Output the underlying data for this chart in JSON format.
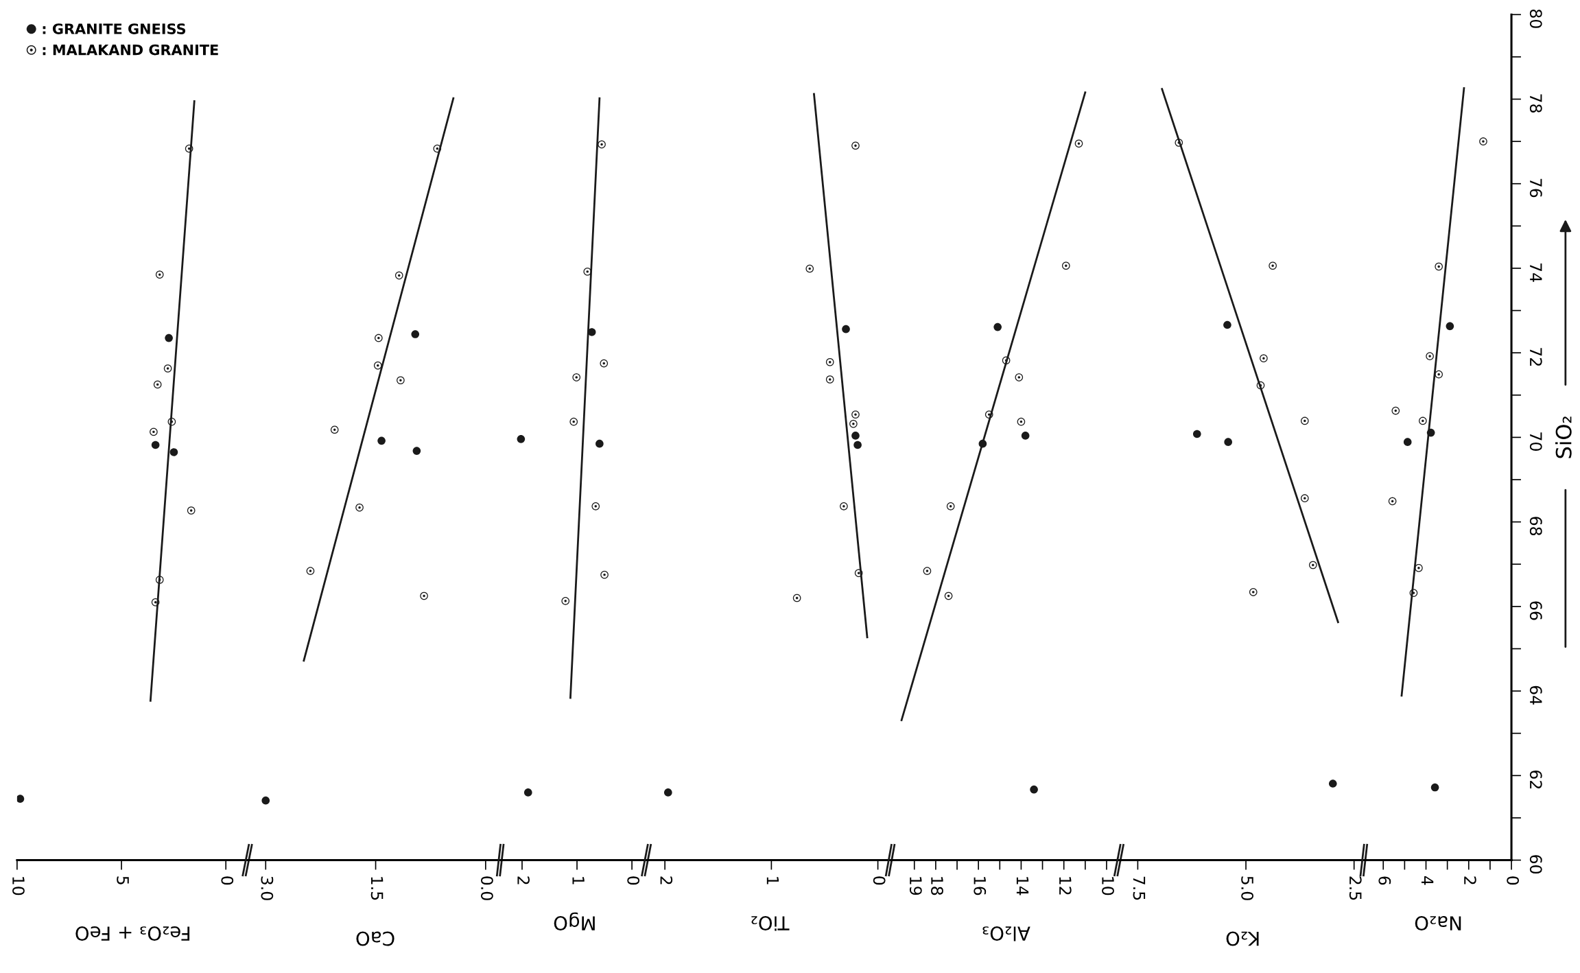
{
  "chart_data": [
    {
      "type": "scatter",
      "xlabel": "Fe₂O₃ + FeO",
      "xlim": [
        10,
        -1.1
      ],
      "xticks": [
        10,
        5,
        0
      ],
      "ylim": [
        60,
        80
      ],
      "tick_labels": "x",
      "legend": "top left",
      "series": [
        {
          "name": ": GRANITE GNEISS",
          "marker": "circle",
          "color": "#1a1a1a",
          "x": [
            9.85,
            2.73,
            3.37,
            2.49
          ],
          "values": [
            61.45,
            72.35,
            69.82,
            69.65
          ]
        },
        {
          "name": ": MALAKAND GRANITE",
          "marker": "dot-circle",
          "color": "#1a1a1a",
          "x": [
            1.76,
            3.17,
            2.78,
            3.27,
            2.59,
            3.46,
            1.66,
            3.17,
            3.37
          ],
          "values": [
            76.83,
            73.85,
            71.63,
            71.25,
            70.37,
            70.13,
            68.27,
            66.63,
            66.1
          ]
        },
        {
          "type": "line",
          "color": "#1a1a1a",
          "x": [
            3.61,
            1.51
          ],
          "values": [
            63.77,
            77.95
          ]
        }
      ]
    },
    {
      "type": "scatter",
      "xlabel": "CaO",
      "xlim": [
        3.23,
        -0.22
      ],
      "xticks": [
        {
          "value": 3,
          "label": "3.0"
        },
        {
          "value": 1.5,
          "label": "1.5"
        },
        {
          "value": 0,
          "label": "0.0"
        }
      ],
      "ylim": [
        60,
        80
      ],
      "tick_labels": "x",
      "series": [
        {
          "type": "scatter",
          "marker": "circle",
          "color": "#1a1a1a",
          "x": [
            3.0,
            0.96,
            1.42,
            0.94
          ],
          "values": [
            61.41,
            72.44,
            69.92,
            69.68
          ]
        },
        {
          "type": "scatter",
          "marker": "dot-circle",
          "color": "#1a1a1a",
          "x": [
            0.66,
            1.18,
            1.46,
            1.47,
            1.16,
            2.06,
            1.72,
            2.39,
            0.84
          ],
          "values": [
            76.83,
            73.83,
            72.35,
            71.7,
            71.35,
            70.18,
            68.34,
            66.84,
            66.25
          ]
        },
        {
          "type": "line",
          "color": "#1a1a1a",
          "x": [
            2.48,
            0.44
          ],
          "values": [
            64.72,
            78.02
          ]
        }
      ]
    },
    {
      "type": "scatter",
      "xlabel": "MgO",
      "xlim": [
        2.37,
        -0.29
      ],
      "xticks": [
        2,
        1,
        0
      ],
      "ylim": [
        60,
        80
      ],
      "tick_labels": "x",
      "series": [
        {
          "type": "scatter",
          "marker": "circle",
          "color": "#1a1a1a",
          "x": [
            2.02,
            1.89,
            0.73,
            0.59
          ],
          "values": [
            69.96,
            61.6,
            72.49,
            69.85
          ]
        },
        {
          "type": "scatter",
          "marker": "dot-circle",
          "color": "#1a1a1a",
          "x": [
            0.55,
            0.81,
            0.51,
            1.01,
            1.06,
            0.66,
            0.5,
            1.21
          ],
          "values": [
            76.93,
            73.92,
            71.75,
            71.42,
            70.37,
            68.37,
            66.75,
            66.13
          ]
        },
        {
          "type": "line",
          "color": "#1a1a1a",
          "x": [
            1.12,
            0.59
          ],
          "values": [
            63.84,
            78.02
          ]
        }
      ]
    },
    {
      "type": "scatter",
      "xlabel": "TiO₂",
      "xlim": [
        2.16,
        -0.13
      ],
      "xticks": [
        2,
        1,
        0
      ],
      "ylim": [
        60,
        80
      ],
      "tick_labels": "x",
      "series": [
        {
          "type": "scatter",
          "marker": "circle",
          "color": "#1a1a1a",
          "x": [
            1.97,
            0.3,
            0.21,
            0.19
          ],
          "values": [
            61.6,
            72.56,
            70.04,
            69.82
          ]
        },
        {
          "type": "scatter",
          "marker": "dot-circle",
          "color": "#1a1a1a",
          "x": [
            0.21,
            0.64,
            0.45,
            0.45,
            0.21,
            0.23,
            0.32,
            0.18,
            0.76
          ],
          "values": [
            76.9,
            73.99,
            71.78,
            71.37,
            70.54,
            70.32,
            68.37,
            66.79,
            66.2
          ]
        },
        {
          "type": "line",
          "color": "#1a1a1a",
          "x": [
            0.1,
            0.6
          ],
          "values": [
            65.27,
            78.12
          ]
        }
      ]
    },
    {
      "type": "scatter",
      "xlabel": "Al₂O₃",
      "xlim": [
        20.06,
        9.35
      ],
      "xticks": [
        19,
        18,
        {
          "value": 17,
          "label": null
        },
        16,
        {
          "value": 15,
          "label": null
        },
        14,
        {
          "value": 13,
          "label": null
        },
        12,
        {
          "value": 11,
          "label": null
        },
        10
      ],
      "ylim": [
        60,
        80
      ],
      "tick_labels": "x",
      "series": [
        {
          "type": "scatter",
          "marker": "circle",
          "color": "#1a1a1a",
          "x": [
            15.1,
            15.8,
            13.8,
            13.4
          ],
          "values": [
            72.61,
            69.85,
            70.04,
            61.67
          ]
        },
        {
          "type": "scatter",
          "marker": "dot-circle",
          "color": "#1a1a1a",
          "x": [
            11.3,
            11.9,
            14.7,
            14.1,
            14.0,
            15.5,
            17.3,
            18.4,
            17.4
          ],
          "values": [
            76.95,
            74.06,
            71.82,
            71.42,
            70.37,
            70.54,
            68.37,
            66.84,
            66.25
          ]
        },
        {
          "type": "line",
          "color": "#1a1a1a",
          "x": [
            19.6,
            11.0
          ],
          "values": [
            63.31,
            78.16
          ]
        }
      ]
    },
    {
      "type": "scatter",
      "xlabel": "K₂O",
      "xlim": [
        7.9,
        2.24
      ],
      "xticks": [
        {
          "value": 7.5,
          "label": "7.5"
        },
        {
          "value": 5,
          "label": "5.0"
        },
        {
          "value": 2.5,
          "label": "2.5"
        }
      ],
      "ylim": [
        60,
        80
      ],
      "tick_labels": "x",
      "series": [
        {
          "type": "scatter",
          "marker": "circle",
          "color": "#1a1a1a",
          "x": [
            5.43,
            6.13,
            5.41,
            2.99
          ],
          "values": [
            72.66,
            70.08,
            69.89,
            61.81
          ]
        },
        {
          "type": "scatter",
          "marker": "dot-circle",
          "color": "#1a1a1a",
          "x": [
            6.55,
            4.38,
            4.66,
            4.59,
            3.64,
            3.64,
            3.45,
            4.83
          ],
          "values": [
            76.97,
            74.06,
            71.23,
            71.87,
            70.39,
            68.56,
            66.98,
            66.34
          ]
        },
        {
          "type": "line",
          "color": "#1a1a1a",
          "x": [
            6.94,
            2.87
          ],
          "values": [
            78.24,
            65.63
          ]
        }
      ]
    },
    {
      "type": "scatter",
      "xlabel": "Na₂O",
      "ylabel": "SiO₂",
      "xlim": [
        6.84,
        0
      ],
      "xticks": [
        6,
        {
          "value": 5,
          "label": null
        },
        4,
        {
          "value": 3,
          "label": null
        },
        2,
        {
          "value": 1,
          "label": null
        },
        0
      ],
      "ylim": [
        60,
        80
      ],
      "yticks": [
        60,
        {
          "value": 61,
          "label": null
        },
        62,
        {
          "value": 63,
          "label": null
        },
        64,
        {
          "value": 65,
          "label": null
        },
        66,
        {
          "value": 67,
          "label": null
        },
        68,
        {
          "value": 69,
          "label": null
        },
        70,
        {
          "value": 71,
          "label": null
        },
        72,
        {
          "value": 73,
          "label": null
        },
        74,
        {
          "value": 75,
          "label": null
        },
        76,
        {
          "value": 77,
          "label": null
        },
        78,
        {
          "value": 79,
          "label": null
        },
        80
      ],
      "series": [
        {
          "type": "scatter",
          "marker": "circle",
          "color": "#1a1a1a",
          "x": [
            2.88,
            4.86,
            3.77,
            3.58
          ],
          "values": [
            72.63,
            69.89,
            70.11,
            61.72
          ]
        },
        {
          "type": "scatter",
          "marker": "dot-circle",
          "color": "#1a1a1a",
          "x": [
            1.32,
            3.4,
            3.82,
            3.4,
            5.42,
            4.15,
            5.57,
            4.34,
            4.58
          ],
          "values": [
            77.0,
            74.04,
            71.92,
            71.49,
            70.63,
            70.39,
            68.49,
            66.91,
            66.32
          ]
        },
        {
          "type": "line",
          "color": "#1a1a1a",
          "x": [
            2.22,
            5.14
          ],
          "values": [
            78.26,
            63.89
          ]
        }
      ]
    }
  ]
}
